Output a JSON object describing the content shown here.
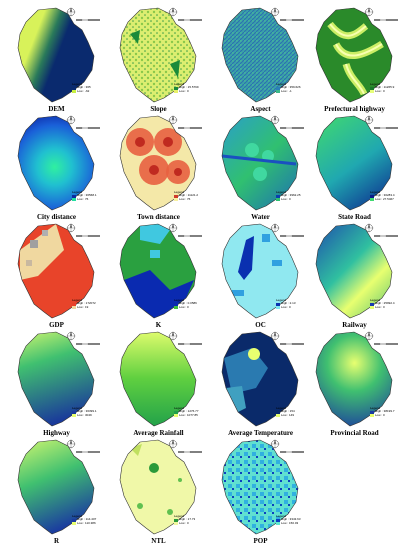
{
  "panels": [
    {
      "id": "dem",
      "title": "DEM",
      "high": "High : 365",
      "low": "Low : -62",
      "c_hi": "#0a2a6e",
      "c_lo": "#c8f040",
      "theme": "dem"
    },
    {
      "id": "slope",
      "title": "Slope",
      "high": "High : 15.5799",
      "low": "Low : 0",
      "c_hi": "#1a8a3a",
      "c_lo": "#e8f06a",
      "theme": "slope"
    },
    {
      "id": "aspect",
      "title": "Aspect",
      "high": "High : 359.626",
      "low": "Low : -1",
      "c_hi": "#2a7fb8",
      "c_lo": "#3cb98a",
      "theme": "aspect"
    },
    {
      "id": "prefectural",
      "title": "Prefectural highway",
      "high": "High : 11265.9",
      "low": "Low : 0",
      "c_hi": "#1a7a2a",
      "c_lo": "#e8ff7a",
      "theme": "prefectural"
    },
    {
      "id": "city",
      "title": "City distance",
      "high": "High : 36568.1",
      "low": "Low : 76",
      "c_hi": "#0a2aa0",
      "c_lo": "#20e0a0",
      "theme": "city"
    },
    {
      "id": "town",
      "title": "Town distance",
      "high": "High : 11121.2",
      "low": "Low : 76",
      "c_hi": "#d03a2a",
      "c_lo": "#f8f0a0",
      "theme": "town"
    },
    {
      "id": "water",
      "title": "Water",
      "high": "High : 3962.25",
      "low": "Low : 0",
      "c_hi": "#0a40b0",
      "c_lo": "#30c070",
      "theme": "water"
    },
    {
      "id": "state",
      "title": "State Road",
      "high": "High : 30283.4",
      "low": "Low : 27.5467",
      "c_hi": "#0a1a8a",
      "c_lo": "#40d870",
      "theme": "state"
    },
    {
      "id": "gdp",
      "title": "GDP",
      "high": "High : 172072",
      "low": "Low : 19",
      "c_hi": "#e8402a",
      "c_lo": "#f0d8a0",
      "theme": "gdp"
    },
    {
      "id": "k",
      "title": "K",
      "high": "High : 0.0586",
      "low": "Low : 0",
      "c_hi": "#0a2ab0",
      "c_lo": "#40c040",
      "theme": "k"
    },
    {
      "id": "oc",
      "title": "OC",
      "high": "High : 2.13",
      "low": "Low : 0",
      "c_hi": "#0a30b0",
      "c_lo": "#80e8f0",
      "theme": "oc"
    },
    {
      "id": "railway",
      "title": "Railway",
      "high": "High : 25992.4",
      "low": "Low : 0",
      "c_hi": "#1a3ab0",
      "c_lo": "#e8ff70",
      "theme": "railway"
    },
    {
      "id": "highway",
      "title": "Highway",
      "high": "High : 36399.1",
      "low": "Low : 3049",
      "c_hi": "#1a3a9a",
      "c_lo": "#e8ff70",
      "theme": "highway"
    },
    {
      "id": "rainfall",
      "title": "Average Rainfall",
      "high": "High : 1276.77",
      "low": "Low : 1077.85",
      "c_hi": "#20a04a",
      "c_lo": "#e8ff70",
      "theme": "rainfall"
    },
    {
      "id": "temperature",
      "title": "Average Temperature",
      "high": "High : 154",
      "low": "Low : 149",
      "c_hi": "#0a2a6a",
      "c_lo": "#e8ff70",
      "theme": "temperature"
    },
    {
      "id": "provincial",
      "title": "Provincial Road",
      "high": "High : 38199.7",
      "low": "Low : 0",
      "c_hi": "#1a3aa0",
      "c_lo": "#e8ff70",
      "theme": "provincial"
    },
    {
      "id": "r",
      "title": "R",
      "high": "High : 114.407",
      "low": "Low : 110.386",
      "c_hi": "#1a3aa0",
      "c_lo": "#e8ff70",
      "theme": "r"
    },
    {
      "id": "ntl",
      "title": "NTL",
      "high": "High : 17.73",
      "low": "Low : 0",
      "c_hi": "#2a9a3a",
      "c_lo": "#f0f8a0",
      "theme": "ntl"
    },
    {
      "id": "pop",
      "title": "POP",
      "high": "High : 3343.63",
      "low": "Low : 150.03",
      "c_hi": "#0a40c0",
      "c_lo": "#60e8d0",
      "theme": "pop"
    }
  ],
  "legend_title": "Legend",
  "north_label": "N"
}
